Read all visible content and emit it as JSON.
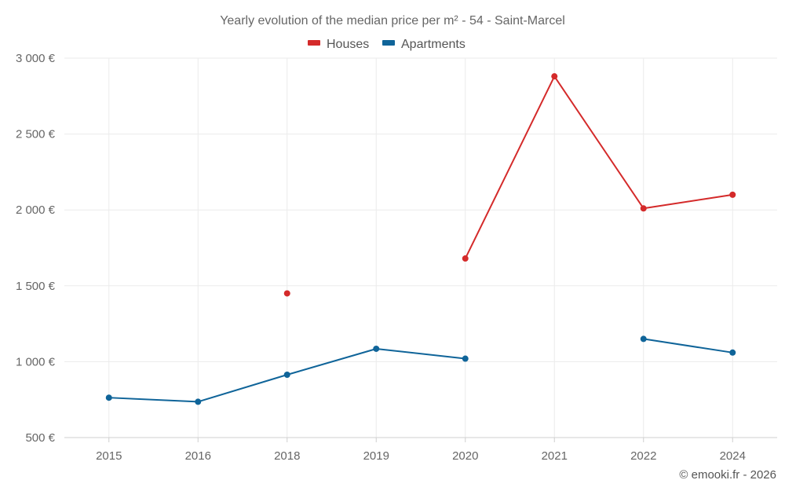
{
  "chart_data": {
    "type": "line",
    "title": "Yearly evolution of the median price per m² - 54 - Saint-Marcel",
    "categories": [
      "2015",
      "2016",
      "2018",
      "2019",
      "2020",
      "2021",
      "2022",
      "2024"
    ],
    "series": [
      {
        "name": "Houses",
        "color": "#d42a2a",
        "values": [
          null,
          null,
          1450,
          null,
          1680,
          2880,
          2010,
          2100
        ]
      },
      {
        "name": "Apartments",
        "color": "#0f6499",
        "values": [
          763,
          736,
          914,
          1085,
          1020,
          null,
          1150,
          1060
        ]
      }
    ],
    "ylim": [
      500,
      3000
    ],
    "yticks": [
      500,
      1000,
      1500,
      2000,
      2500,
      3000
    ],
    "ytick_labels": [
      "500 €",
      "1 000 €",
      "1 500 €",
      "2 000 €",
      "2 500 €",
      "3 000 €"
    ],
    "xlabel": "",
    "ylabel": "",
    "grid": true,
    "legend_position": "top-center"
  },
  "credit": "© emooki.fr - 2026"
}
